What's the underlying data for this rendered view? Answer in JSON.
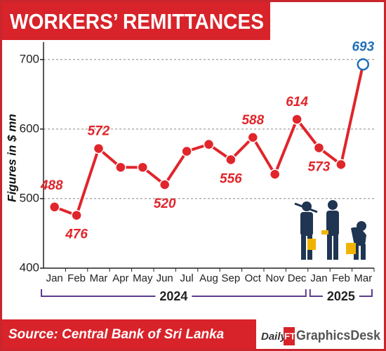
{
  "chart_data": {
    "type": "line",
    "title": "WORKERS’ REMITTANCES",
    "y_label": "Figures in $ mn",
    "categories": [
      "Jan",
      "Feb",
      "Mar",
      "Apr",
      "May",
      "Jun",
      "Jul",
      "Aug",
      "Sep",
      "Oct",
      "Nov",
      "Dec",
      "Jan",
      "Feb",
      "Mar"
    ],
    "category_groups": [
      "2024",
      "2024",
      "2024",
      "2024",
      "2024",
      "2024",
      "2024",
      "2024",
      "2024",
      "2024",
      "2024",
      "2024",
      "2025",
      "2025",
      "2025"
    ],
    "values": [
      488,
      476,
      572,
      545,
      545,
      520,
      568,
      578,
      556,
      588,
      535,
      614,
      573,
      549,
      693
    ],
    "value_labels": [
      "488",
      "476",
      "572",
      null,
      null,
      "520",
      null,
      null,
      "556",
      "588",
      null,
      "614",
      "573",
      null,
      "693"
    ],
    "color": "#e0252b",
    "highlight_color": "#1f6fb8",
    "ylim": [
      400,
      725
    ],
    "yticks": [
      400,
      500,
      600,
      700
    ],
    "grid": true,
    "source": "Source: Central Bank of Sri Lanka",
    "credit": [
      "Daily",
      "FT",
      "GraphicsDesk"
    ]
  }
}
